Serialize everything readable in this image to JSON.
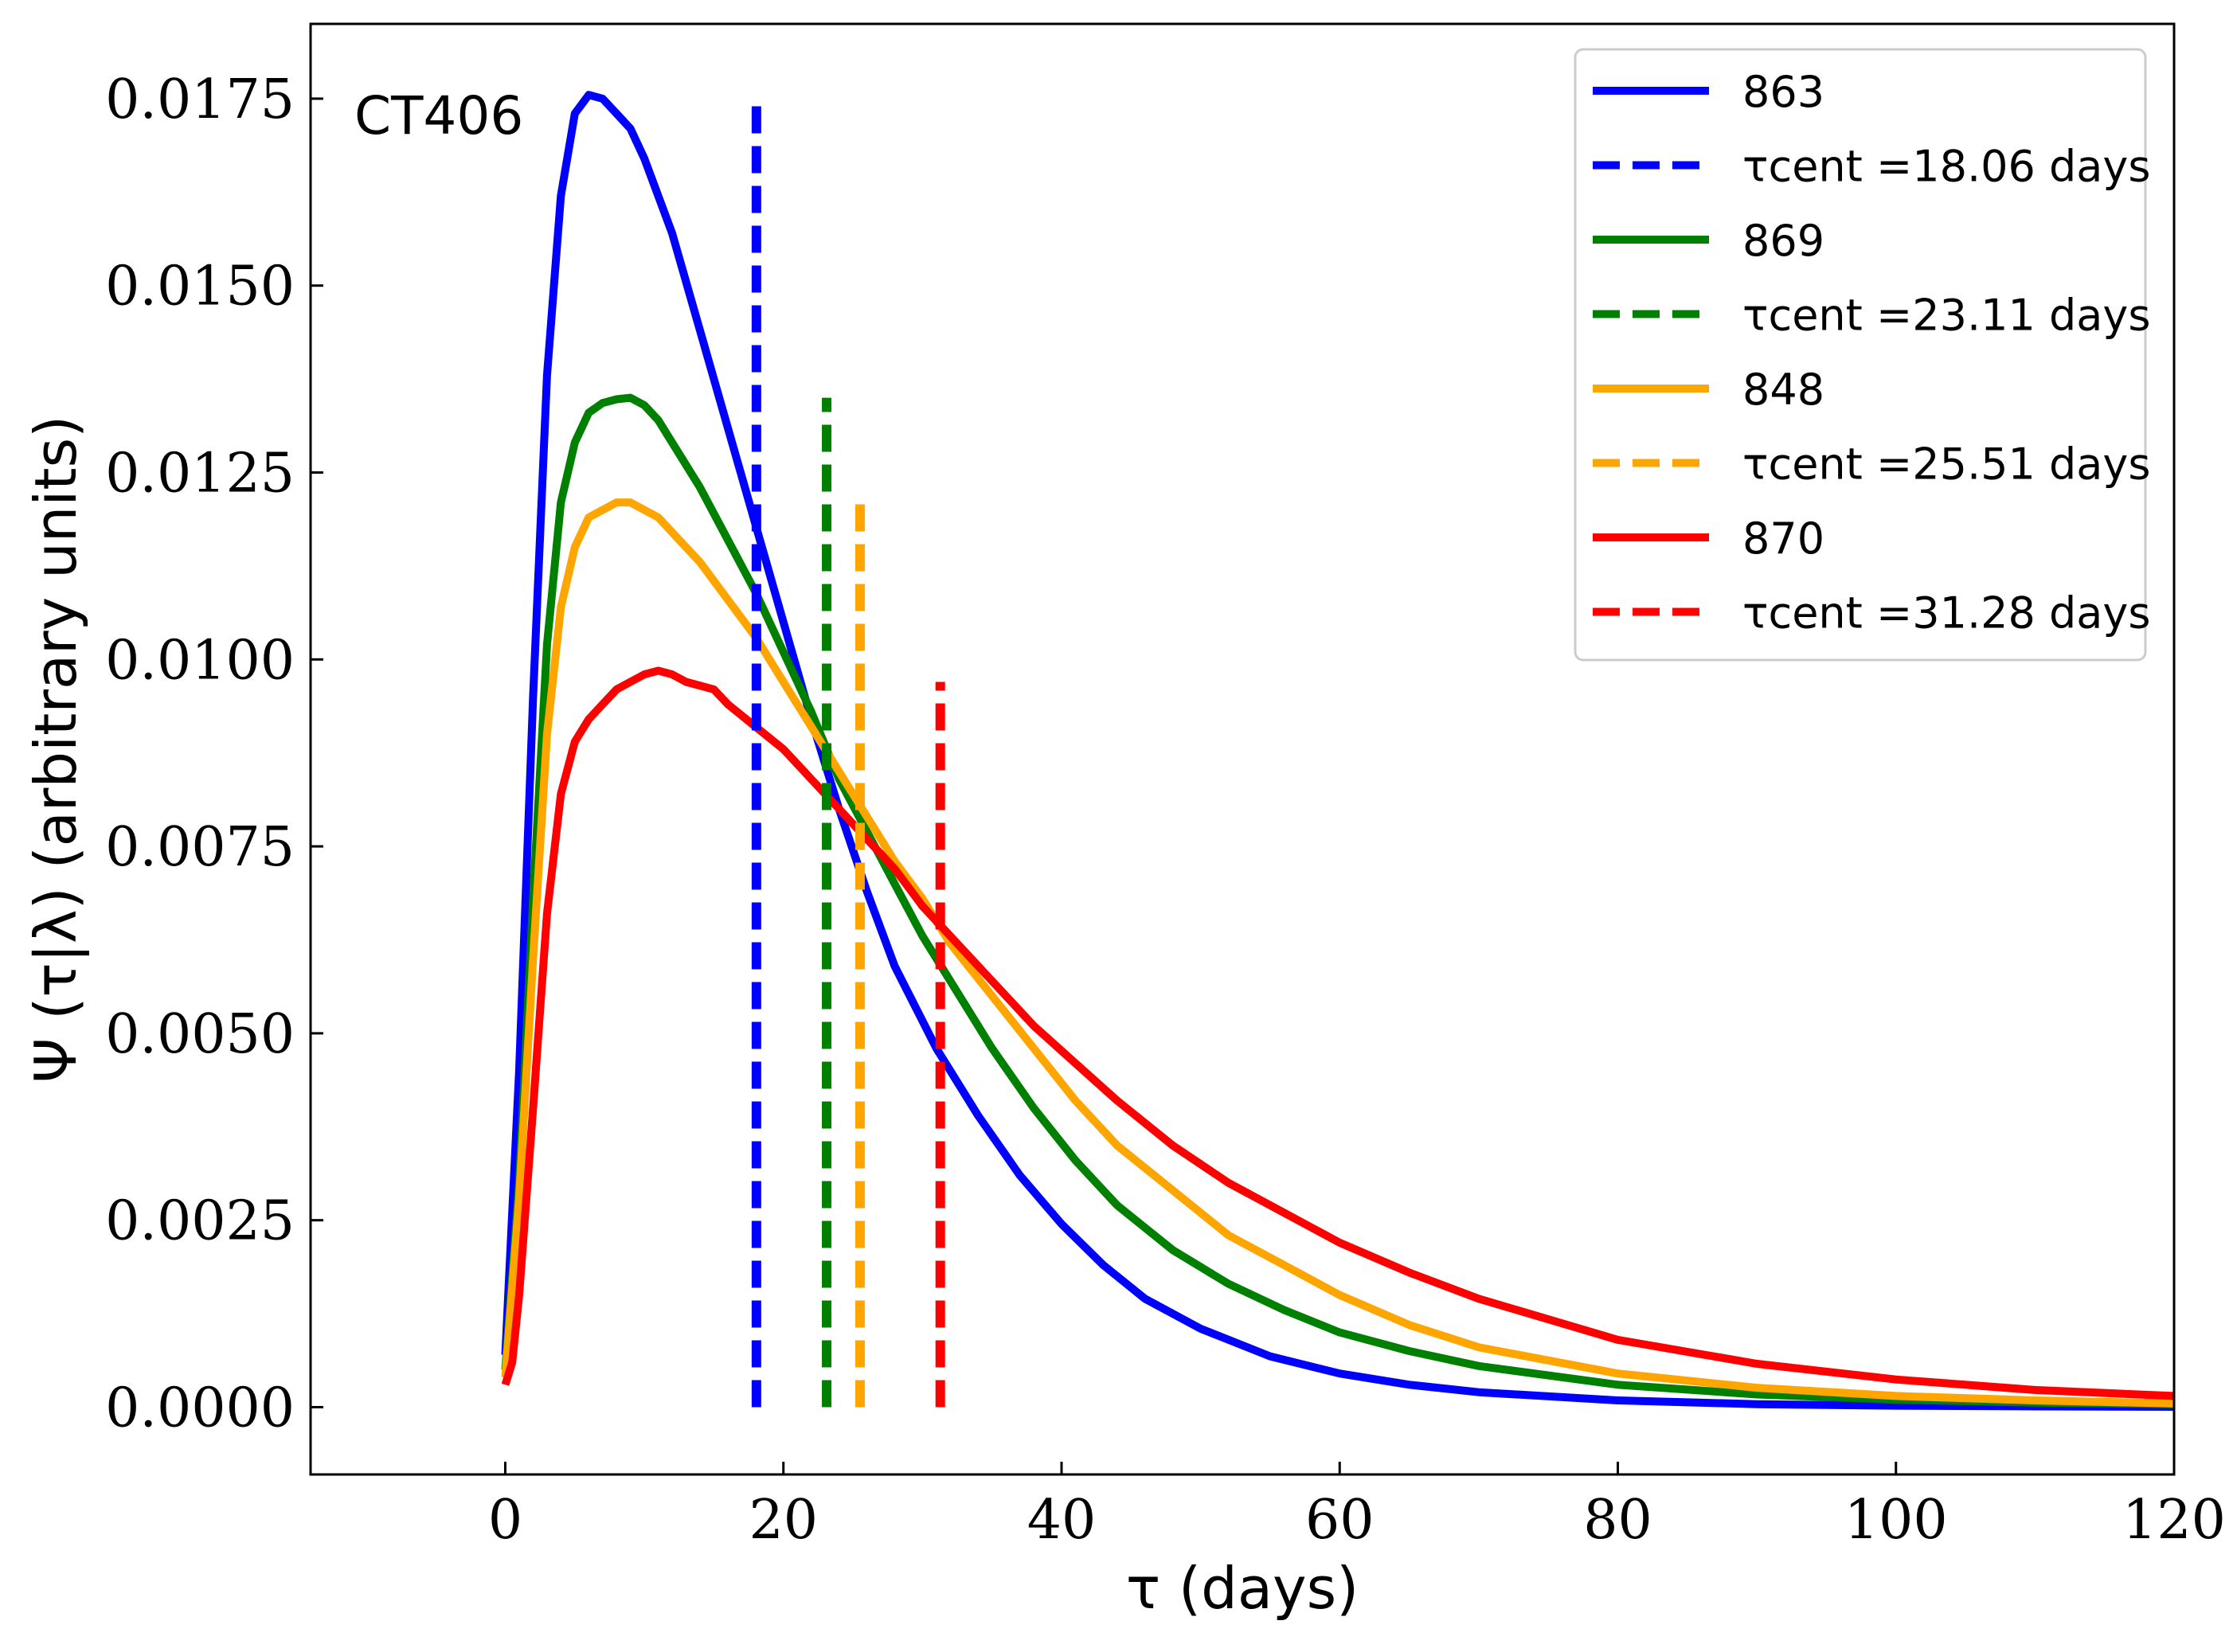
{
  "chart_data": {
    "type": "line",
    "annotation": "CT406",
    "xlabel": "τ (days)",
    "ylabel": "Ψ (τ|λ) (arbitrary units)",
    "xlim": [
      -14,
      120
    ],
    "ylim": [
      -0.0009,
      0.0185
    ],
    "xticks": [
      0,
      20,
      40,
      60,
      80,
      100,
      120
    ],
    "xtick_labels": [
      "0",
      "20",
      "40",
      "60",
      "80",
      "100",
      "120"
    ],
    "yticks": [
      0.0,
      0.0025,
      0.005,
      0.0075,
      0.01,
      0.0125,
      0.015,
      0.0175
    ],
    "ytick_labels": [
      "0.0000",
      "0.0025",
      "0.0050",
      "0.0075",
      "0.0100",
      "0.0125",
      "0.0150",
      "0.0175"
    ],
    "legend_position": "top-right",
    "series": [
      {
        "name": "863",
        "color": "#0000ff",
        "centroid_label": "τcent =18.06 days",
        "centroid": 18.06,
        "centroid_height": 0.0175,
        "points": [
          [
            0,
            0.0007
          ],
          [
            1,
            0.0045
          ],
          [
            2,
            0.0095
          ],
          [
            3,
            0.0138
          ],
          [
            4,
            0.0162
          ],
          [
            5,
            0.0173
          ],
          [
            6,
            0.01755
          ],
          [
            7,
            0.0175
          ],
          [
            8,
            0.0173
          ],
          [
            9,
            0.0171
          ],
          [
            10,
            0.0167
          ],
          [
            12,
            0.0157
          ],
          [
            14,
            0.0144
          ],
          [
            16,
            0.0131
          ],
          [
            18,
            0.0118
          ],
          [
            20,
            0.0105
          ],
          [
            22,
            0.0092
          ],
          [
            24,
            0.008
          ],
          [
            26,
            0.0069
          ],
          [
            28,
            0.0059
          ],
          [
            31,
            0.0048
          ],
          [
            34,
            0.0039
          ],
          [
            37,
            0.0031
          ],
          [
            40,
            0.00245
          ],
          [
            43,
            0.0019
          ],
          [
            46,
            0.00145
          ],
          [
            50,
            0.00105
          ],
          [
            55,
            0.00068
          ],
          [
            60,
            0.00045
          ],
          [
            65,
            0.0003
          ],
          [
            70,
            0.0002
          ],
          [
            80,
            9e-05
          ],
          [
            90,
            4e-05
          ],
          [
            100,
            2e-05
          ],
          [
            110,
            1e-05
          ],
          [
            120,
            5e-06
          ]
        ]
      },
      {
        "name": "869",
        "color": "#008000",
        "centroid_label": "τcent =23.11 days",
        "centroid": 23.11,
        "centroid_height": 0.0135,
        "points": [
          [
            0,
            0.0005
          ],
          [
            1,
            0.003
          ],
          [
            2,
            0.0068
          ],
          [
            3,
            0.0102
          ],
          [
            4,
            0.0121
          ],
          [
            5,
            0.0129
          ],
          [
            6,
            0.0133
          ],
          [
            7,
            0.01343
          ],
          [
            8,
            0.01348
          ],
          [
            9,
            0.0135
          ],
          [
            10,
            0.0134
          ],
          [
            11,
            0.0132
          ],
          [
            12,
            0.0129
          ],
          [
            14,
            0.0123
          ],
          [
            16,
            0.0116
          ],
          [
            18,
            0.0109
          ],
          [
            20,
            0.0101
          ],
          [
            22,
            0.0093
          ],
          [
            24,
            0.0084
          ],
          [
            26,
            0.0077
          ],
          [
            28,
            0.007
          ],
          [
            30,
            0.0063
          ],
          [
            32,
            0.0057
          ],
          [
            35,
            0.0048
          ],
          [
            38,
            0.004
          ],
          [
            41,
            0.0033
          ],
          [
            44,
            0.0027
          ],
          [
            48,
            0.0021
          ],
          [
            52,
            0.00165
          ],
          [
            56,
            0.0013
          ],
          [
            60,
            0.001
          ],
          [
            65,
            0.00075
          ],
          [
            70,
            0.00055
          ],
          [
            80,
            0.0003
          ],
          [
            90,
            0.00017
          ],
          [
            100,
            0.0001
          ],
          [
            110,
            6e-05
          ],
          [
            120,
            4e-05
          ]
        ]
      },
      {
        "name": "848",
        "color": "#ffa500",
        "centroid_label": "τcent =25.51 days",
        "centroid": 25.51,
        "centroid_height": 0.0121,
        "points": [
          [
            0,
            0.0004
          ],
          [
            1,
            0.0028
          ],
          [
            2,
            0.006
          ],
          [
            3,
            0.009
          ],
          [
            4,
            0.0107
          ],
          [
            5,
            0.0115
          ],
          [
            6,
            0.0119
          ],
          [
            7,
            0.012
          ],
          [
            8,
            0.0121
          ],
          [
            9,
            0.0121
          ],
          [
            10,
            0.012
          ],
          [
            11,
            0.0119
          ],
          [
            12,
            0.0117
          ],
          [
            14,
            0.0113
          ],
          [
            16,
            0.0108
          ],
          [
            18,
            0.0103
          ],
          [
            20,
            0.0097
          ],
          [
            22,
            0.0091
          ],
          [
            24,
            0.0085
          ],
          [
            26,
            0.0079
          ],
          [
            28,
            0.0073
          ],
          [
            30,
            0.0068
          ],
          [
            32,
            0.0062
          ],
          [
            35,
            0.0055
          ],
          [
            38,
            0.0048
          ],
          [
            41,
            0.0041
          ],
          [
            44,
            0.0035
          ],
          [
            48,
            0.0029
          ],
          [
            52,
            0.0023
          ],
          [
            56,
            0.0019
          ],
          [
            60,
            0.0015
          ],
          [
            65,
            0.0011
          ],
          [
            70,
            0.0008
          ],
          [
            80,
            0.00045
          ],
          [
            90,
            0.00026
          ],
          [
            100,
            0.00015
          ],
          [
            110,
            9e-05
          ],
          [
            120,
            5e-05
          ]
        ]
      },
      {
        "name": "870",
        "color": "#ff0000",
        "centroid_label": "τcent =31.28 days",
        "centroid": 31.28,
        "centroid_height": 0.0097,
        "points": [
          [
            0,
            0.0003
          ],
          [
            0.5,
            0.0006
          ],
          [
            1,
            0.0015
          ],
          [
            2,
            0.004
          ],
          [
            3,
            0.0066
          ],
          [
            4,
            0.0082
          ],
          [
            5,
            0.0089
          ],
          [
            6,
            0.0092
          ],
          [
            7,
            0.0094
          ],
          [
            8,
            0.0096
          ],
          [
            9,
            0.0097
          ],
          [
            10,
            0.0098
          ],
          [
            11,
            0.00985
          ],
          [
            12,
            0.0098
          ],
          [
            13,
            0.0097
          ],
          [
            15,
            0.0096
          ],
          [
            16,
            0.0094
          ],
          [
            18,
            0.0091
          ],
          [
            20,
            0.0088
          ],
          [
            22,
            0.0084
          ],
          [
            24,
            0.008
          ],
          [
            26,
            0.0076
          ],
          [
            28,
            0.0072
          ],
          [
            30,
            0.0067
          ],
          [
            32,
            0.0063
          ],
          [
            35,
            0.0057
          ],
          [
            38,
            0.0051
          ],
          [
            41,
            0.0046
          ],
          [
            44,
            0.0041
          ],
          [
            48,
            0.0035
          ],
          [
            52,
            0.003
          ],
          [
            56,
            0.0026
          ],
          [
            60,
            0.0022
          ],
          [
            65,
            0.0018
          ],
          [
            70,
            0.00145
          ],
          [
            80,
            0.0009
          ],
          [
            90,
            0.00058
          ],
          [
            100,
            0.00037
          ],
          [
            110,
            0.00023
          ],
          [
            120,
            0.00015
          ]
        ]
      }
    ]
  }
}
